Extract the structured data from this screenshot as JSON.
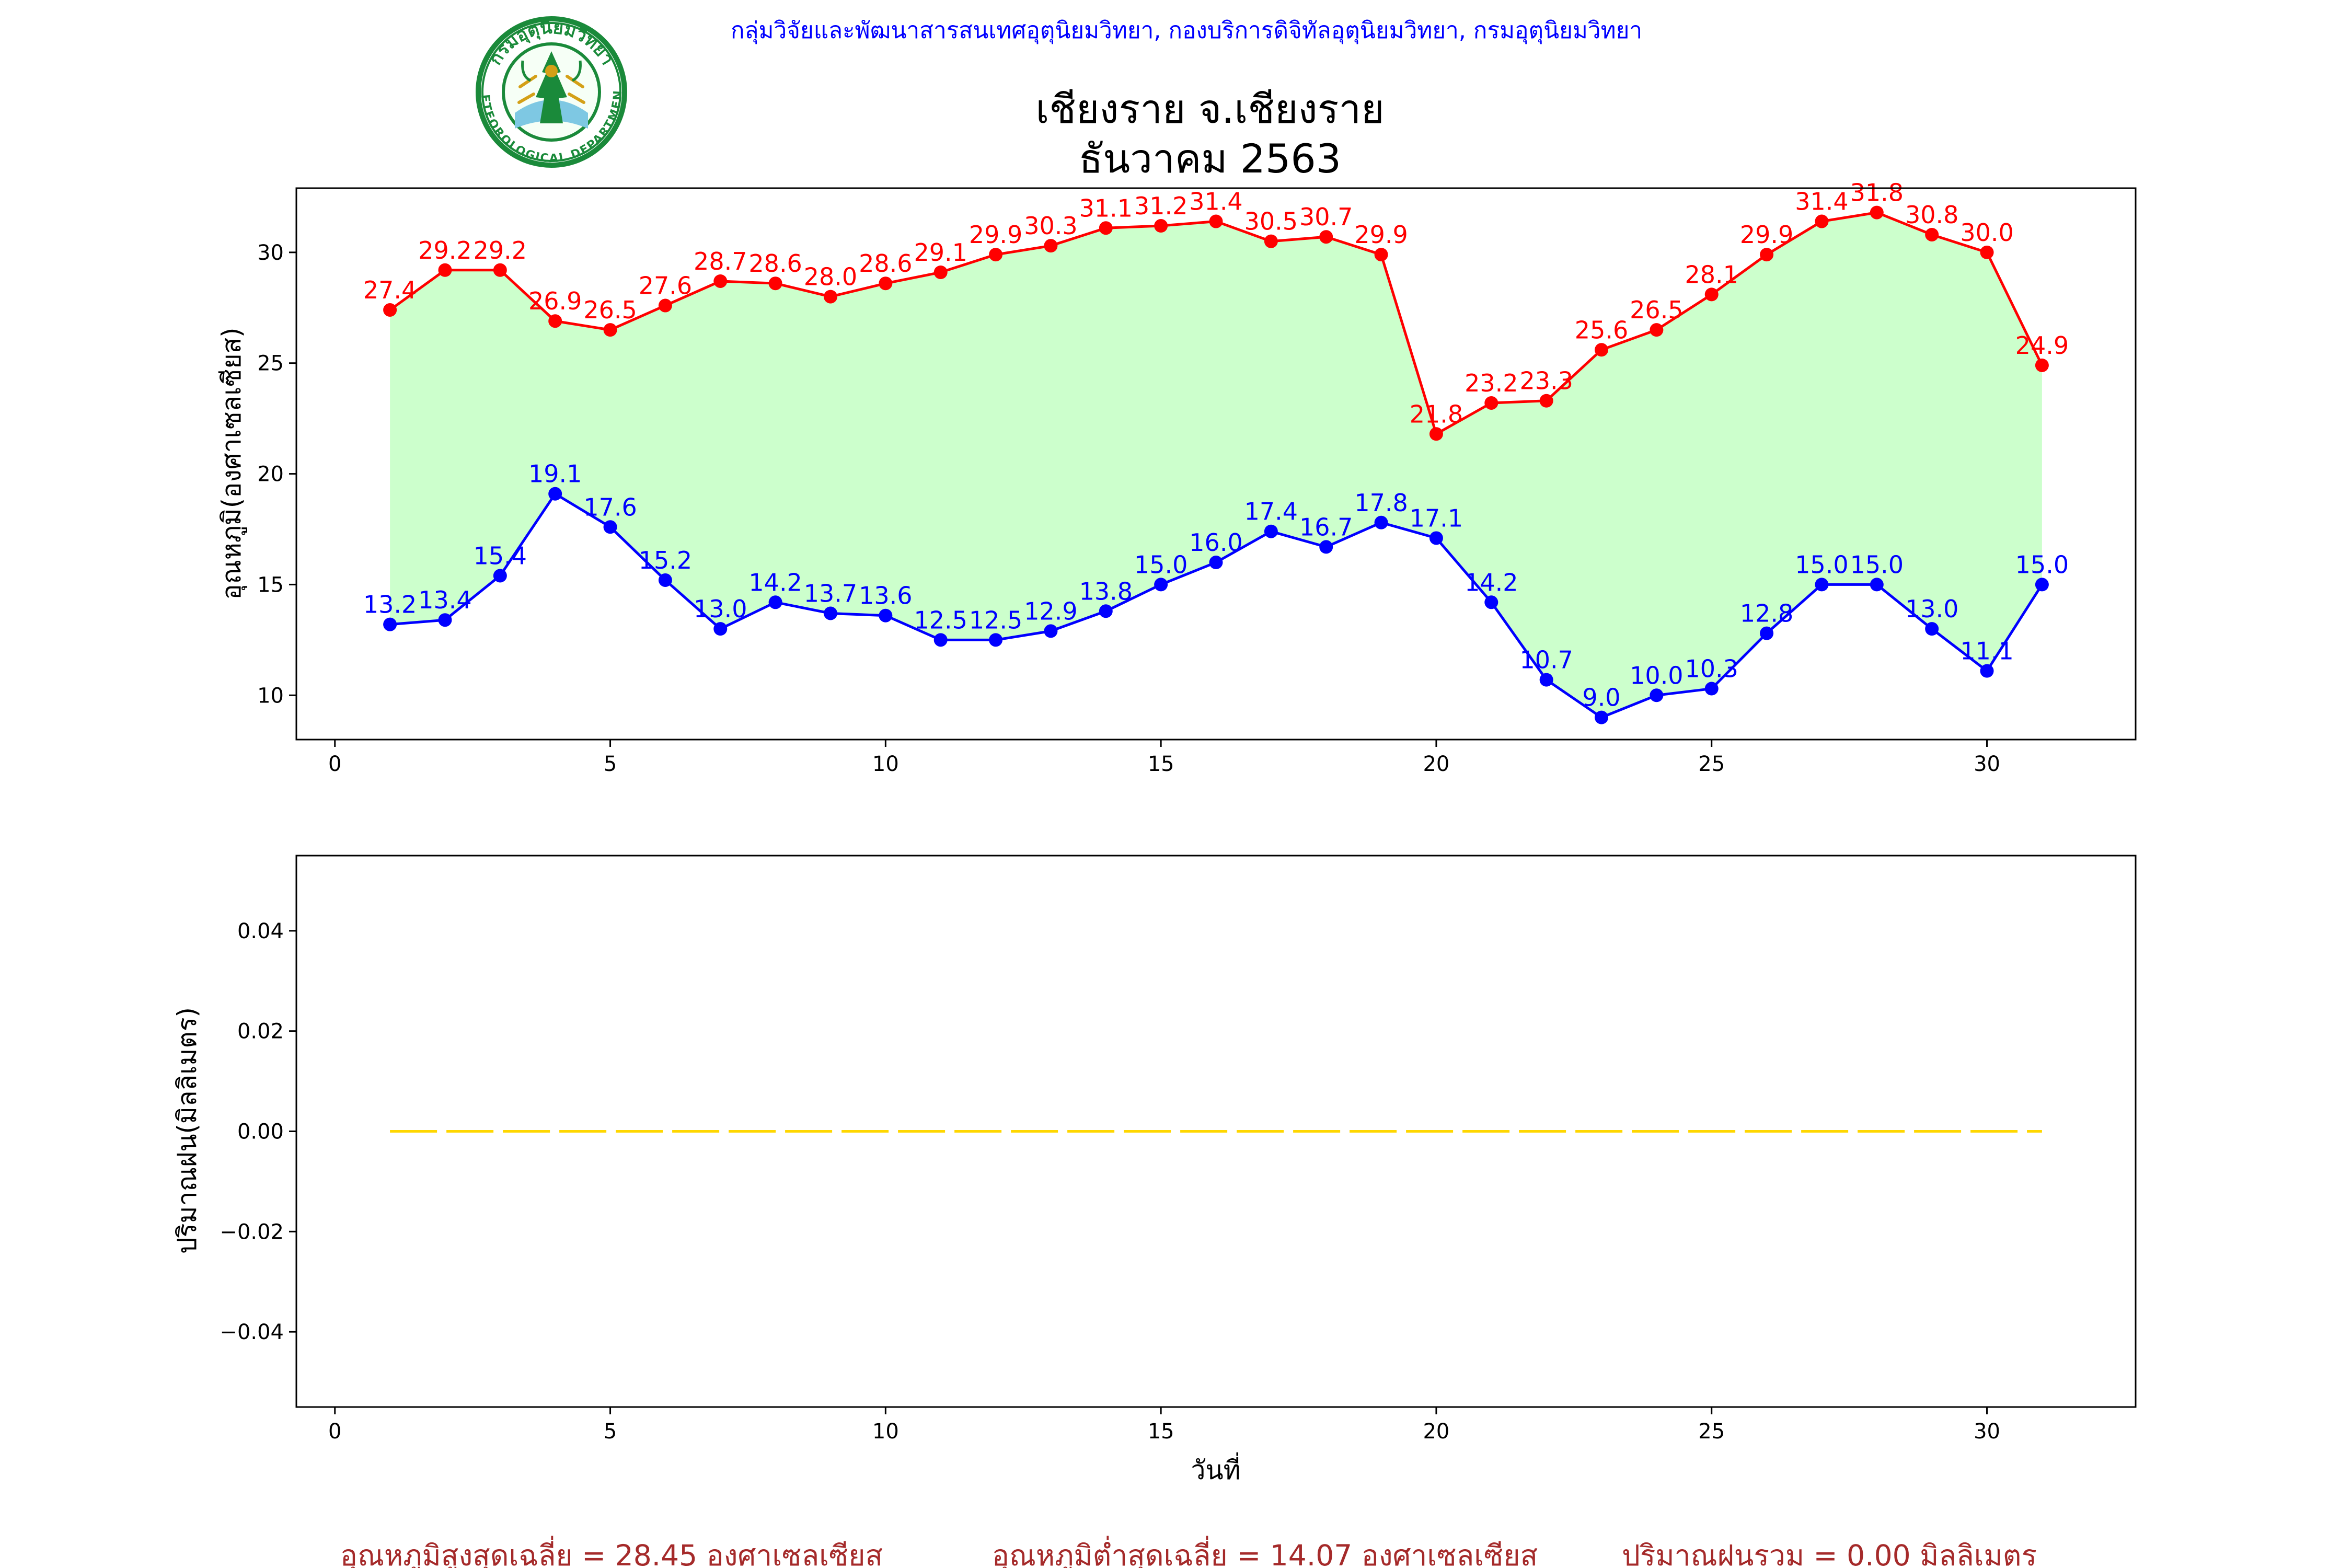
{
  "header": {
    "agency": "กลุ่มวิจัยและพัฒนาสารสนเทศอุตุนิยมวิทยา, กองบริการดิจิทัลอุตุนิยมวิทยา, กรมอุตุนิยมวิทยา",
    "station": "เชียงราย จ.เชียงราย",
    "period": "ธันวาคม 2563",
    "logo_text_top": "กรมอุตุนิยมวิทยา",
    "logo_text_bottom": "METEOROLOGICAL DEPARTMENT"
  },
  "colors": {
    "max_line": "#ff0000",
    "min_line": "#0000ff",
    "fill": "#ccffcc",
    "rain_line": "#ffd700",
    "agency_text": "#0000ff",
    "summary_text": "#a52a2a",
    "logo_green": "#1a8a3a",
    "logo_gold": "#d4a017"
  },
  "chart_data": [
    {
      "type": "line",
      "ylabel": "อุณหภูมิ(องศาเซลเซียส)",
      "xlabel": "",
      "xlim": [
        -0.7,
        32.7
      ],
      "ylim": [
        8.0,
        32.9
      ],
      "xticks": [
        0,
        5,
        10,
        15,
        20,
        25,
        30
      ],
      "yticks": [
        10,
        15,
        20,
        25,
        30
      ],
      "grid": false,
      "fill_between": true,
      "x": [
        1,
        2,
        3,
        4,
        5,
        6,
        7,
        8,
        9,
        10,
        11,
        12,
        13,
        14,
        15,
        16,
        17,
        18,
        19,
        20,
        21,
        22,
        23,
        24,
        25,
        26,
        27,
        28,
        29,
        30,
        31
      ],
      "series": [
        {
          "color": "#ff0000",
          "values": [
            27.4,
            29.2,
            29.2,
            26.9,
            26.5,
            27.6,
            28.7,
            28.6,
            28.0,
            28.6,
            29.1,
            29.9,
            30.3,
            31.1,
            31.2,
            31.4,
            30.5,
            30.7,
            29.9,
            21.8,
            23.2,
            23.3,
            25.6,
            26.5,
            28.1,
            29.9,
            31.4,
            31.8,
            30.8,
            30.0,
            24.9
          ],
          "labels": [
            "27.4",
            "29.2",
            "29.2",
            "26.9",
            "26.5",
            "27.6",
            "28.7",
            "28.6",
            "28.0",
            "28.6",
            "29.1",
            "29.9",
            "30.3",
            "31.1",
            "31.2",
            "31.4",
            "30.5",
            "30.7",
            "29.9",
            "21.8",
            "23.2",
            "23.3",
            "25.6",
            "26.5",
            "28.1",
            "29.9",
            "31.4",
            "31.8",
            "30.8",
            "30.0",
            "24.9"
          ]
        },
        {
          "color": "#0000ff",
          "values": [
            13.2,
            13.4,
            15.4,
            19.1,
            17.6,
            15.2,
            13.0,
            14.2,
            13.7,
            13.6,
            12.5,
            12.5,
            12.9,
            13.8,
            15.0,
            16.0,
            17.4,
            16.7,
            17.8,
            17.1,
            14.2,
            10.7,
            9.0,
            10.0,
            10.3,
            12.8,
            15.0,
            15.0,
            13.0,
            11.1,
            15.0
          ],
          "labels": [
            "13.2",
            "13.4",
            "15.4",
            "19.1",
            "17.6",
            "15.2",
            "13.0",
            "14.2",
            "13.7",
            "13.6",
            "12.5",
            "12.5",
            "12.9",
            "13.8",
            "15.0",
            "16.0",
            "17.4",
            "16.7",
            "17.8",
            "17.1",
            "14.2",
            "10.7",
            "9.0",
            "10.0",
            "10.3",
            "12.8",
            "15.0",
            "15.0",
            "13.0",
            "11.1",
            "15.0"
          ]
        }
      ]
    },
    {
      "type": "line",
      "ylabel": "ปริมาณฝน(มิลลิเมตร)",
      "xlabel": "วันที่",
      "xlim": [
        -0.7,
        32.7
      ],
      "ylim": [
        -0.055,
        0.055
      ],
      "xticks": [
        0,
        5,
        10,
        15,
        20,
        25,
        30
      ],
      "yticks": [
        -0.04,
        -0.02,
        0.0,
        0.02,
        0.04
      ],
      "ytick_labels": [
        "−0.04",
        "−0.02",
        "0.00",
        "0.02",
        "0.04"
      ],
      "grid": false,
      "line_style": "dashed",
      "x": [
        1,
        2,
        3,
        4,
        5,
        6,
        7,
        8,
        9,
        10,
        11,
        12,
        13,
        14,
        15,
        16,
        17,
        18,
        19,
        20,
        21,
        22,
        23,
        24,
        25,
        26,
        27,
        28,
        29,
        30,
        31
      ],
      "series": [
        {
          "color": "#ffd700",
          "values": [
            0,
            0,
            0,
            0,
            0,
            0,
            0,
            0,
            0,
            0,
            0,
            0,
            0,
            0,
            0,
            0,
            0,
            0,
            0,
            0,
            0,
            0,
            0,
            0,
            0,
            0,
            0,
            0,
            0,
            0,
            0
          ]
        }
      ]
    }
  ],
  "summary": {
    "max_avg": "อุณหภูมิสูงสุดเฉลี่ย = 28.45 องศาเซลเซียส",
    "min_avg": "อุณหภูมิต่ำสุดเฉลี่ย = 14.07 องศาเซลเซียส",
    "rain_total": "ปริมาณฝนรวม = 0.00 มิลลิเมตร"
  }
}
